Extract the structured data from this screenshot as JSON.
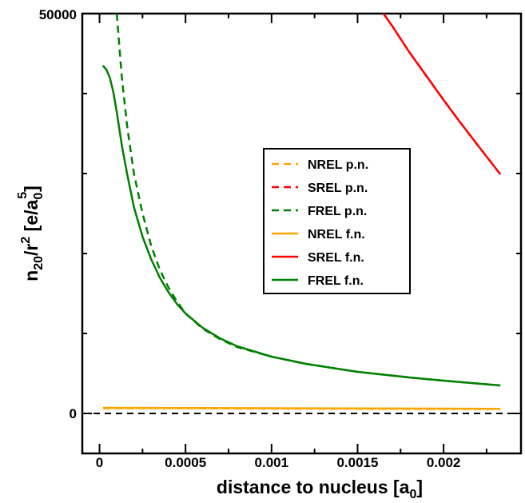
{
  "chart_data": {
    "type": "line",
    "xlabel": {
      "main": "distance to nucleus [a",
      "sub": "0",
      "close": "]"
    },
    "ylabel": {
      "n": "n",
      "n_sub": "20",
      "r": "/r",
      "r_sup": "2",
      "unit": " [e/a",
      "unit_sub": "0",
      "unit_sup": "5",
      "close": "]"
    },
    "xlim": [
      -0.0001,
      0.00245
    ],
    "ylim": [
      -5000,
      50000
    ],
    "x_ticks": [
      {
        "value": 0,
        "label": "0"
      },
      {
        "value": 0.0005,
        "label": "0.0005"
      },
      {
        "value": 0.001,
        "label": "0.001"
      },
      {
        "value": 0.0015,
        "label": "0.0015"
      },
      {
        "value": 0.002,
        "label": "0.002"
      }
    ],
    "y_ticks": [
      {
        "value": 0,
        "label": "0"
      },
      {
        "value": 50000,
        "label": "50000"
      }
    ],
    "y_minor_ticks": [
      10000,
      20000,
      30000,
      40000
    ],
    "x_minor_ticks": [
      0.00025,
      0.00075,
      0.00125,
      0.00175,
      0.00225
    ],
    "zero_line": true,
    "grid": false,
    "legend_position": "center-right",
    "series": [
      {
        "name": "NREL p.n.",
        "color": "#ffa500",
        "dash": true,
        "x": [
          2e-05,
          0.0005,
          0.001,
          0.0015,
          0.002,
          0.00233
        ],
        "y": [
          650,
          650,
          600,
          580,
          560,
          550
        ]
      },
      {
        "name": "SREL p.n.",
        "color": "#ff0000",
        "dash": true,
        "x": [
          0.00165,
          0.0017,
          0.0018,
          0.0019,
          0.002,
          0.0021,
          0.0022,
          0.00233
        ],
        "y": [
          50000,
          48500,
          45200,
          42200,
          39200,
          36300,
          33500,
          29900
        ]
      },
      {
        "name": "FREL p.n.",
        "color": "#008000",
        "dash": true,
        "x": [
          0.0001,
          0.00013,
          0.00016,
          0.0002,
          0.00025,
          0.0003,
          0.00035,
          0.0004,
          0.00045,
          0.0005,
          0.0006,
          0.0007,
          0.0008,
          0.001,
          0.0012,
          0.0015,
          0.0018,
          0.002,
          0.00233
        ],
        "y": [
          50000,
          42000,
          36000,
          30000,
          25000,
          21000,
          18000,
          15800,
          14000,
          12500,
          10600,
          9300,
          8300,
          7100,
          6200,
          5200,
          4500,
          4100,
          3500
        ]
      },
      {
        "name": "NREL f.n.",
        "color": "#ffa500",
        "dash": false,
        "x": [
          2e-05,
          0.0005,
          0.001,
          0.0015,
          0.002,
          0.00233
        ],
        "y": [
          700,
          680,
          650,
          620,
          600,
          580
        ]
      },
      {
        "name": "SREL f.n.",
        "color": "#ff0000",
        "dash": false,
        "x": [
          0.00165,
          0.0017,
          0.0018,
          0.0019,
          0.002,
          0.0021,
          0.0022,
          0.00233
        ],
        "y": [
          50000,
          48500,
          45200,
          42200,
          39200,
          36300,
          33500,
          29900
        ]
      },
      {
        "name": "FREL f.n.",
        "color": "#008000",
        "dash": false,
        "x": [
          2e-05,
          4e-05,
          6e-05,
          8e-05,
          0.0001,
          0.00013,
          0.00016,
          0.0002,
          0.00025,
          0.0003,
          0.00035,
          0.0004,
          0.00045,
          0.0005,
          0.0006,
          0.0007,
          0.0008,
          0.001,
          0.0012,
          0.0015,
          0.0018,
          0.002,
          0.00233
        ],
        "y": [
          43500,
          43000,
          42000,
          40200,
          37700,
          33500,
          30000,
          25800,
          22100,
          19300,
          17000,
          15200,
          13700,
          12500,
          10700,
          9400,
          8400,
          7100,
          6200,
          5200,
          4500,
          4100,
          3500
        ]
      }
    ]
  }
}
